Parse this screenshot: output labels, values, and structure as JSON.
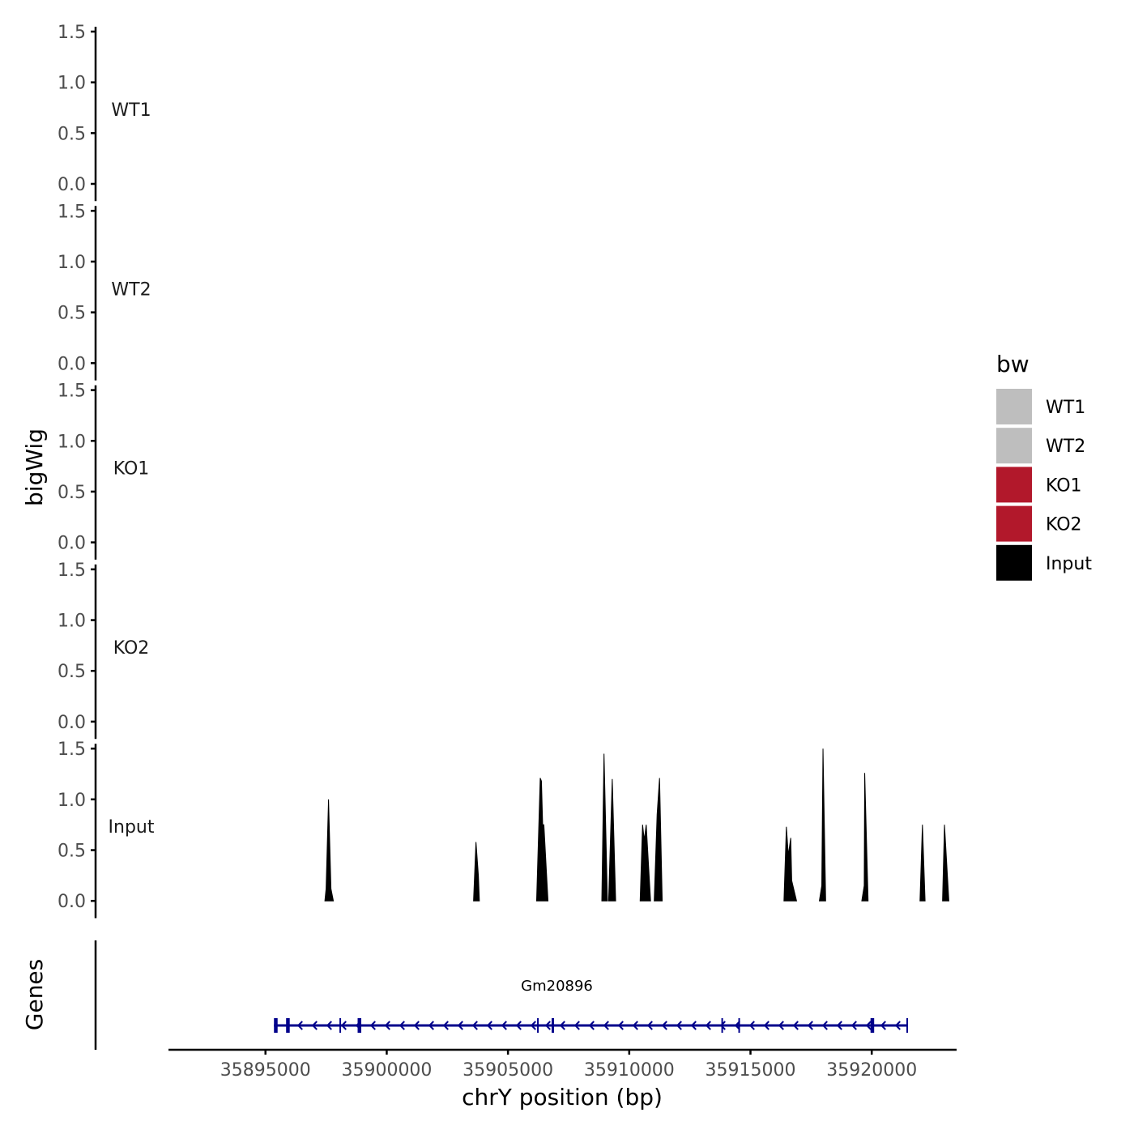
{
  "chart_data": {
    "type": "area",
    "ylabel": "bigWig",
    "xlabel": "chrY position (bp)",
    "xlim": [
      35891000,
      35923500
    ],
    "x_ticks": [
      35895000,
      35900000,
      35905000,
      35910000,
      35915000,
      35920000
    ],
    "x_tick_labels": [
      "35895000",
      "35900000",
      "35905000",
      "35910000",
      "35915000",
      "35920000"
    ],
    "ylim": [
      0,
      1.5
    ],
    "y_ticks": [
      0.0,
      0.5,
      1.0,
      1.5
    ],
    "y_tick_labels": [
      "0.0",
      "0.5",
      "1.0",
      "1.5"
    ],
    "tracks": [
      {
        "name": "WT1",
        "color": "#bebebe",
        "points": []
      },
      {
        "name": "WT2",
        "color": "#bebebe",
        "points": []
      },
      {
        "name": "KO1",
        "color": "#b2182b",
        "points": []
      },
      {
        "name": "KO2",
        "color": "#b2182b",
        "points": []
      },
      {
        "name": "Input",
        "color": "#000000",
        "points": [
          [
            35897450,
            0
          ],
          [
            35897500,
            0.12
          ],
          [
            35897600,
            1.0
          ],
          [
            35897700,
            0.12
          ],
          [
            35897800,
            0
          ],
          [
            35903580,
            0
          ],
          [
            35903680,
            0.58
          ],
          [
            35903780,
            0.25
          ],
          [
            35903820,
            0
          ],
          [
            35906180,
            0
          ],
          [
            35906330,
            1.21
          ],
          [
            35906380,
            1.18
          ],
          [
            35906430,
            0.75
          ],
          [
            35906480,
            0.75
          ],
          [
            35906650,
            0
          ],
          [
            35908870,
            0
          ],
          [
            35908960,
            1.45
          ],
          [
            35909100,
            0
          ],
          [
            35909150,
            0
          ],
          [
            35909300,
            1.2
          ],
          [
            35909440,
            0
          ],
          [
            35910450,
            0
          ],
          [
            35910550,
            0.75
          ],
          [
            35910620,
            0.6
          ],
          [
            35910700,
            0.75
          ],
          [
            35910880,
            0
          ],
          [
            35911030,
            0
          ],
          [
            35911150,
            0.85
          ],
          [
            35911250,
            1.21
          ],
          [
            35911360,
            0
          ],
          [
            35916380,
            0
          ],
          [
            35916480,
            0.73
          ],
          [
            35916560,
            0.45
          ],
          [
            35916660,
            0.62
          ],
          [
            35916700,
            0.2
          ],
          [
            35916900,
            0
          ],
          [
            35917840,
            0
          ],
          [
            35917940,
            0.15
          ],
          [
            35917990,
            1.5
          ],
          [
            35918100,
            0
          ],
          [
            35919590,
            0
          ],
          [
            35919690,
            0.15
          ],
          [
            35919710,
            1.26
          ],
          [
            35919850,
            0
          ],
          [
            35921990,
            0
          ],
          [
            35922090,
            0.75
          ],
          [
            35922200,
            0
          ],
          [
            35922920,
            0
          ],
          [
            35923000,
            0.75
          ],
          [
            35923180,
            0
          ]
        ]
      }
    ],
    "genes": {
      "title": "Genes",
      "color": "#00008b",
      "items": [
        {
          "name": "Gm20896",
          "start": 35895350,
          "end": 35921480,
          "strand": "-",
          "exons": [
            [
              35895350,
              35895500
            ],
            [
              35895850,
              35896000
            ],
            [
              35898050,
              35898100
            ],
            [
              35898800,
              35898950
            ],
            [
              35906200,
              35906250
            ],
            [
              35906800,
              35906900
            ],
            [
              35913800,
              35913850
            ],
            [
              35914500,
              35914550
            ],
            [
              35919950,
              35920100
            ],
            [
              35921430,
              35921480
            ]
          ]
        }
      ]
    },
    "legend": {
      "title": "bw",
      "position": "right",
      "entries": [
        {
          "label": "WT1",
          "color": "#bebebe"
        },
        {
          "label": "WT2",
          "color": "#bebebe"
        },
        {
          "label": "KO1",
          "color": "#b2182b"
        },
        {
          "label": "KO2",
          "color": "#b2182b"
        },
        {
          "label": "Input",
          "color": "#000000"
        }
      ]
    },
    "grid": false
  }
}
